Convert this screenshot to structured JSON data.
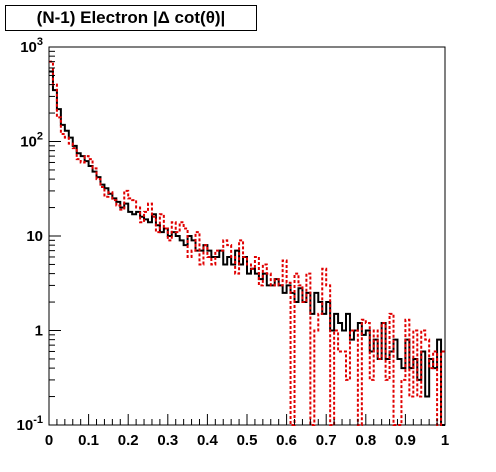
{
  "chart_data": {
    "type": "line",
    "title": "(N-1) Electron |Δ cot(θ)|",
    "xlabel": "",
    "ylabel": "",
    "xlim": [
      0,
      1
    ],
    "ylim": [
      0.1,
      1000
    ],
    "yscale": "log",
    "grid": false,
    "x_ticks": [
      "0",
      "0.1",
      "0.2",
      "0.3",
      "0.4",
      "0.5",
      "0.6",
      "0.7",
      "0.8",
      "0.9",
      "1"
    ],
    "y_ticks": [
      {
        "value": 0.1,
        "base": "10",
        "exp": "-1"
      },
      {
        "value": 1,
        "base": "1",
        "exp": ""
      },
      {
        "value": 10,
        "base": "10",
        "exp": ""
      },
      {
        "value": 100,
        "base": "10",
        "exp": "2"
      },
      {
        "value": 1000,
        "base": "10",
        "exp": "3"
      }
    ],
    "x": [
      0.005,
      0.015,
      0.025,
      0.035,
      0.045,
      0.055,
      0.065,
      0.075,
      0.085,
      0.095,
      0.105,
      0.115,
      0.125,
      0.135,
      0.145,
      0.155,
      0.165,
      0.175,
      0.185,
      0.195,
      0.205,
      0.215,
      0.225,
      0.235,
      0.245,
      0.255,
      0.265,
      0.275,
      0.285,
      0.295,
      0.305,
      0.315,
      0.325,
      0.335,
      0.345,
      0.355,
      0.365,
      0.375,
      0.385,
      0.395,
      0.405,
      0.415,
      0.425,
      0.435,
      0.445,
      0.455,
      0.465,
      0.475,
      0.485,
      0.495,
      0.505,
      0.515,
      0.525,
      0.535,
      0.545,
      0.555,
      0.565,
      0.575,
      0.585,
      0.595,
      0.605,
      0.615,
      0.625,
      0.635,
      0.645,
      0.655,
      0.665,
      0.675,
      0.685,
      0.695,
      0.705,
      0.715,
      0.725,
      0.735,
      0.745,
      0.755,
      0.765,
      0.775,
      0.785,
      0.795,
      0.805,
      0.815,
      0.825,
      0.835,
      0.845,
      0.855,
      0.865,
      0.875,
      0.885,
      0.895,
      0.905,
      0.915,
      0.925,
      0.935,
      0.945,
      0.955,
      0.965,
      0.975,
      0.985,
      0.995
    ],
    "series": [
      {
        "color": "#000000",
        "style": "solid",
        "values": [
          550,
          350,
          220,
          150,
          130,
          110,
          90,
          75,
          70,
          62,
          55,
          48,
          42,
          35,
          32,
          28,
          25,
          23,
          20,
          22,
          18,
          17,
          18,
          16,
          15,
          14,
          17,
          13,
          11,
          12,
          10,
          11,
          10,
          9,
          8,
          10,
          9,
          7,
          7,
          8,
          7,
          6,
          6,
          7,
          5,
          6,
          5,
          7,
          5,
          6,
          4,
          4.5,
          4,
          3.5,
          4,
          3,
          3,
          3.5,
          3,
          2.5,
          3,
          2.5,
          2,
          2.8,
          2,
          2.5,
          1.5,
          2.5,
          2,
          1.5,
          2,
          1,
          1.5,
          1.2,
          1,
          1.5,
          0.8,
          1,
          1.2,
          0.9,
          1,
          0.6,
          0.8,
          0.5,
          1.2,
          0.5,
          0.6,
          0.8,
          0.5,
          0.4,
          0.8,
          0.4,
          0.5,
          0.3,
          0.6,
          0.2,
          0.5,
          0.4,
          0.8,
          0.1
        ]
      },
      {
        "color": "#e00000",
        "style": "dashed",
        "values": [
          700,
          400,
          180,
          120,
          110,
          95,
          85,
          65,
          60,
          70,
          65,
          52,
          40,
          33,
          26,
          29,
          24,
          21,
          19,
          30,
          25,
          24,
          20,
          14,
          18,
          22,
          16,
          11,
          17,
          12,
          9,
          14,
          11,
          14,
          12,
          6,
          7,
          11,
          5,
          8,
          6,
          5,
          7,
          7,
          9,
          8,
          6,
          4,
          9,
          6,
          5,
          4.5,
          6,
          3,
          5,
          4,
          3,
          3.5,
          3,
          5.5,
          3.2,
          0.1,
          4,
          3,
          2,
          4,
          0.1,
          1,
          1.5,
          4.5,
          3,
          0.1,
          1,
          0.6,
          0.6,
          0.3,
          1,
          1,
          0.1,
          1.3,
          1.2,
          0.3,
          1,
          0.5,
          1.2,
          0.3,
          1.5,
          0.1,
          0.1,
          0.3,
          1.3,
          0.2,
          1,
          0.2,
          1,
          0.8,
          0.4,
          0.6,
          0.1,
          0.6
        ]
      }
    ]
  }
}
